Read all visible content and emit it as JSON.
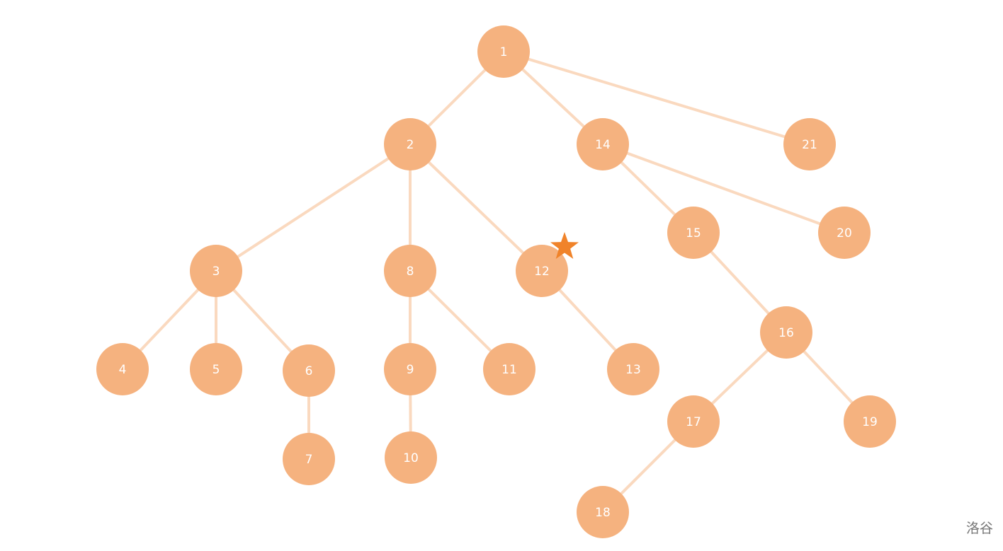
{
  "colors": {
    "node": "#F5B27F",
    "edge": "#FAD9BF",
    "label": "#ffffff",
    "star": "#F0832A"
  },
  "nodes": [
    {
      "id": "1"
    },
    {
      "id": "2"
    },
    {
      "id": "3"
    },
    {
      "id": "4"
    },
    {
      "id": "5"
    },
    {
      "id": "6"
    },
    {
      "id": "7"
    },
    {
      "id": "8"
    },
    {
      "id": "9"
    },
    {
      "id": "10"
    },
    {
      "id": "11"
    },
    {
      "id": "12"
    },
    {
      "id": "13"
    },
    {
      "id": "14"
    },
    {
      "id": "15"
    },
    {
      "id": "16"
    },
    {
      "id": "17"
    },
    {
      "id": "18"
    },
    {
      "id": "19"
    },
    {
      "id": "20"
    },
    {
      "id": "21"
    }
  ],
  "edges": [
    [
      "1",
      "2"
    ],
    [
      "1",
      "14"
    ],
    [
      "1",
      "21"
    ],
    [
      "2",
      "3"
    ],
    [
      "2",
      "8"
    ],
    [
      "2",
      "12"
    ],
    [
      "3",
      "4"
    ],
    [
      "3",
      "5"
    ],
    [
      "3",
      "6"
    ],
    [
      "6",
      "7"
    ],
    [
      "8",
      "9"
    ],
    [
      "8",
      "11"
    ],
    [
      "9",
      "10"
    ],
    [
      "12",
      "13"
    ],
    [
      "14",
      "15"
    ],
    [
      "14",
      "20"
    ],
    [
      "15",
      "16"
    ],
    [
      "16",
      "17"
    ],
    [
      "16",
      "19"
    ],
    [
      "17",
      "18"
    ]
  ],
  "marked_node": "12",
  "marker_icon": "star-icon",
  "watermark": "洛谷"
}
